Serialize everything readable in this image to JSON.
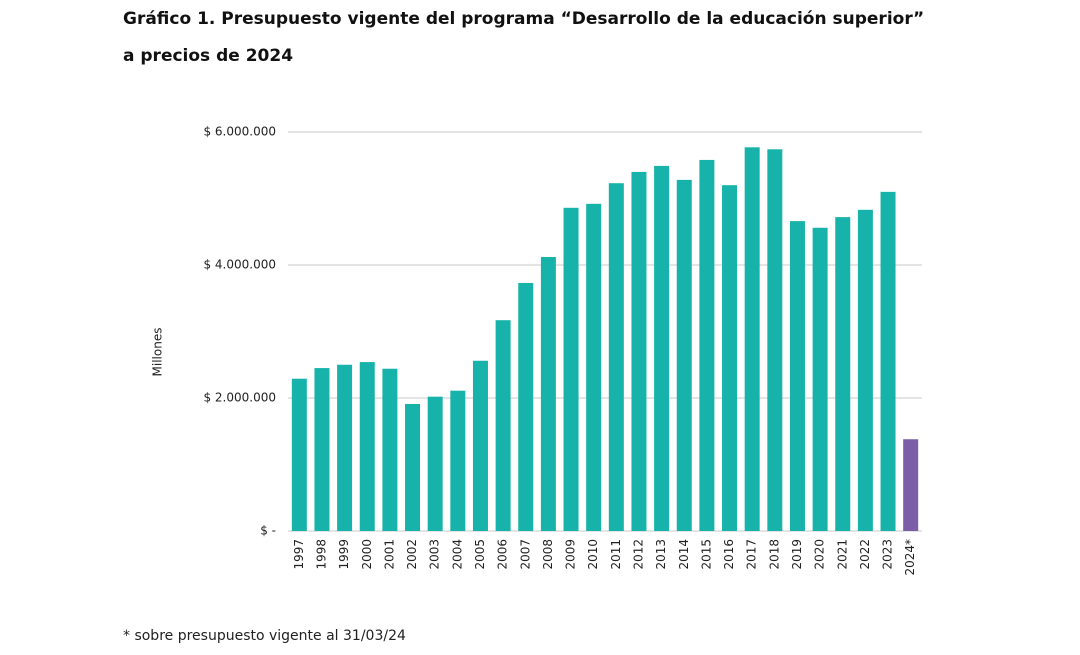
{
  "chart_data": {
    "type": "bar",
    "title": "Gráfico 1. Presupuesto vigente del programa “Desarrollo de la educación superior”",
    "subtitle": "a precios de 2024",
    "y_label": "Millones",
    "note": "* sobre presupuesto vigente al 31/03/24",
    "categories": [
      "1997",
      "1998",
      "1999",
      "2000",
      "2001",
      "2002",
      "2003",
      "2004",
      "2005",
      "2006",
      "2007",
      "2008",
      "2009",
      "2010",
      "2011",
      "2012",
      "2013",
      "2014",
      "2015",
      "2016",
      "2017",
      "2018",
      "2019",
      "2020",
      "2021",
      "2022",
      "2023",
      "2024*"
    ],
    "values": [
      2290000,
      2450000,
      2500000,
      2540000,
      2440000,
      1910000,
      2020000,
      2110000,
      2560000,
      3170000,
      3730000,
      4120000,
      4860000,
      4920000,
      5230000,
      5400000,
      5490000,
      5280000,
      5580000,
      5200000,
      5770000,
      5740000,
      4660000,
      4560000,
      4720000,
      4830000,
      5100000,
      1380000
    ],
    "colors": [
      "#17b3aa",
      "#17b3aa",
      "#17b3aa",
      "#17b3aa",
      "#17b3aa",
      "#17b3aa",
      "#17b3aa",
      "#17b3aa",
      "#17b3aa",
      "#17b3aa",
      "#17b3aa",
      "#17b3aa",
      "#17b3aa",
      "#17b3aa",
      "#17b3aa",
      "#17b3aa",
      "#17b3aa",
      "#17b3aa",
      "#17b3aa",
      "#17b3aa",
      "#17b3aa",
      "#17b3aa",
      "#17b3aa",
      "#17b3aa",
      "#17b3aa",
      "#17b3aa",
      "#17b3aa",
      "#7b5ea7"
    ],
    "ylim": [
      0,
      6000000
    ],
    "yticks": [
      {
        "value": 0,
        "label": "$ -"
      },
      {
        "value": 2000000,
        "label": "$ 2.000.000"
      },
      {
        "value": 4000000,
        "label": "$ 4.000.000"
      },
      {
        "value": 6000000,
        "label": "$ 6.000.000"
      }
    ],
    "grid": true
  }
}
